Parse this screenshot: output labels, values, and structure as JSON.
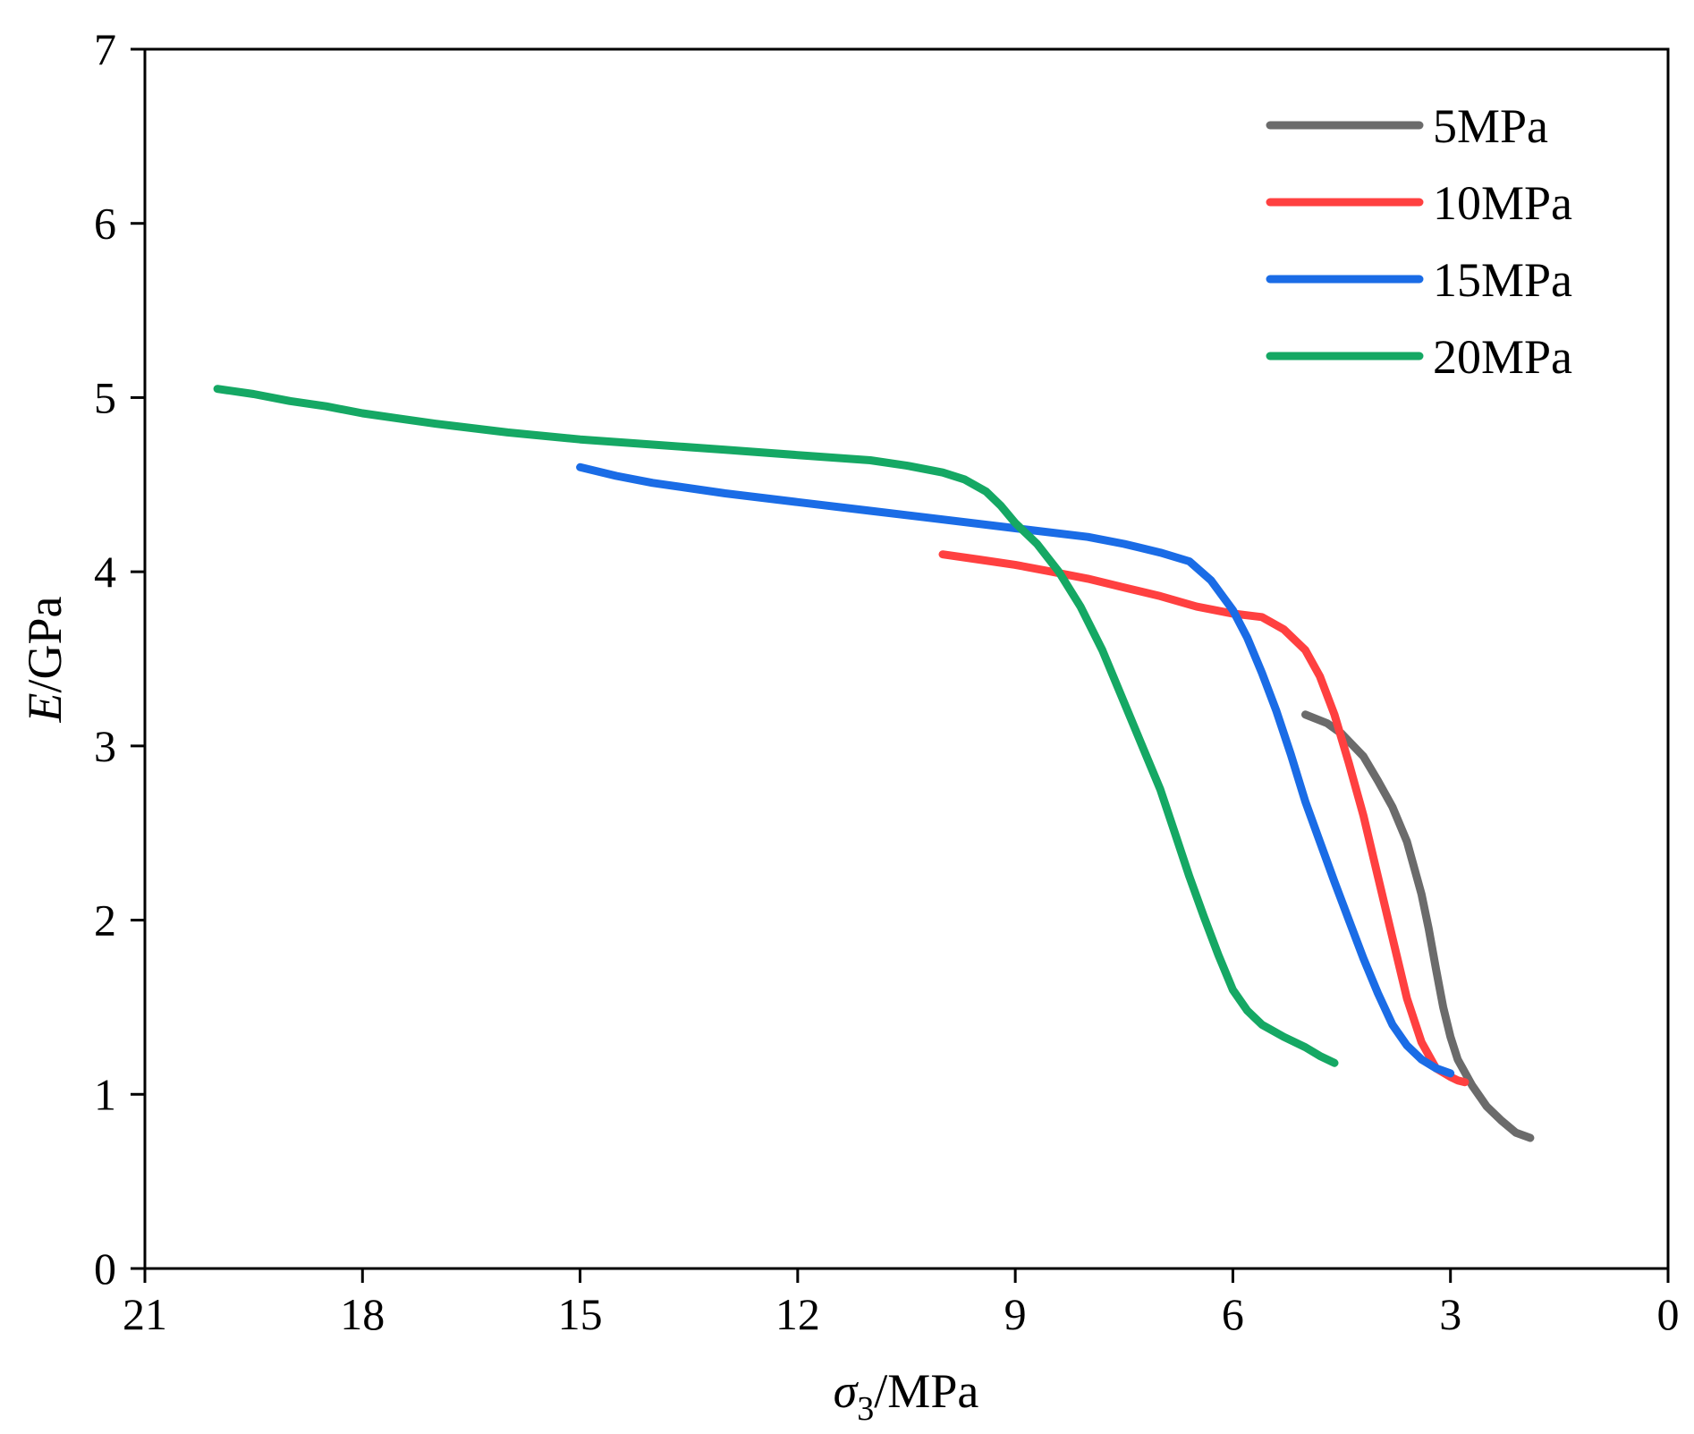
{
  "chart_data": {
    "type": "line",
    "title": "",
    "xlabel": {
      "symbol": "σ",
      "subscript": "3",
      "unit": "/MPa"
    },
    "ylabel": {
      "symbol": "E",
      "unit": "/GPa"
    },
    "xlim": [
      21,
      0
    ],
    "ylim": [
      0,
      7
    ],
    "xticks": [
      21,
      18,
      15,
      12,
      9,
      6,
      3,
      0
    ],
    "yticks": [
      0,
      1,
      2,
      3,
      4,
      5,
      6,
      7
    ],
    "xtick_labels": [
      "21",
      "18",
      "15",
      "12",
      "9",
      "6",
      "3",
      "0"
    ],
    "ytick_labels": [
      "0",
      "1",
      "2",
      "3",
      "4",
      "5",
      "6",
      "7"
    ],
    "grid": false,
    "legend_position": "top-right",
    "series": [
      {
        "name": "5MPa",
        "color": "#6b6b6b",
        "x": [
          5.0,
          4.7,
          4.5,
          4.2,
          4.0,
          3.8,
          3.6,
          3.4,
          3.3,
          3.2,
          3.1,
          3.0,
          2.9,
          2.7,
          2.5,
          2.3,
          2.1,
          1.9
        ],
        "y": [
          3.18,
          3.13,
          3.07,
          2.94,
          2.8,
          2.65,
          2.45,
          2.15,
          1.95,
          1.72,
          1.5,
          1.33,
          1.2,
          1.05,
          0.93,
          0.85,
          0.78,
          0.75
        ]
      },
      {
        "name": "10MPa",
        "color": "#ff4040",
        "x": [
          10.0,
          9.5,
          9.0,
          8.5,
          8.0,
          7.5,
          7.0,
          6.5,
          6.0,
          5.6,
          5.3,
          5.0,
          4.8,
          4.6,
          4.4,
          4.2,
          4.0,
          3.8,
          3.6,
          3.4,
          3.2,
          3.0,
          2.9,
          2.8
        ],
        "y": [
          4.1,
          4.07,
          4.04,
          4.0,
          3.96,
          3.91,
          3.86,
          3.8,
          3.76,
          3.74,
          3.67,
          3.55,
          3.4,
          3.18,
          2.9,
          2.6,
          2.25,
          1.9,
          1.55,
          1.3,
          1.15,
          1.1,
          1.08,
          1.07
        ]
      },
      {
        "name": "15MPa",
        "color": "#1a6ce6",
        "x": [
          15.0,
          14.5,
          14.0,
          13.0,
          12.0,
          11.0,
          10.0,
          9.0,
          8.0,
          7.5,
          7.0,
          6.6,
          6.3,
          6.0,
          5.8,
          5.6,
          5.4,
          5.2,
          5.0,
          4.8,
          4.6,
          4.4,
          4.2,
          4.0,
          3.8,
          3.6,
          3.4,
          3.2,
          3.0
        ],
        "y": [
          4.6,
          4.55,
          4.51,
          4.45,
          4.4,
          4.35,
          4.3,
          4.25,
          4.2,
          4.16,
          4.11,
          4.06,
          3.95,
          3.78,
          3.62,
          3.42,
          3.2,
          2.95,
          2.68,
          2.45,
          2.22,
          2.0,
          1.78,
          1.58,
          1.4,
          1.28,
          1.2,
          1.15,
          1.12
        ]
      },
      {
        "name": "20MPa",
        "color": "#15a864",
        "x": [
          20.0,
          19.5,
          19.0,
          18.5,
          18.0,
          17.5,
          17.0,
          16.0,
          15.0,
          14.0,
          13.0,
          12.0,
          11.0,
          10.5,
          10.0,
          9.7,
          9.4,
          9.2,
          9.0,
          8.7,
          8.4,
          8.1,
          7.8,
          7.5,
          7.2,
          7.0,
          6.8,
          6.6,
          6.4,
          6.2,
          6.0,
          5.8,
          5.6,
          5.3,
          5.0,
          4.8,
          4.6
        ],
        "y": [
          5.05,
          5.02,
          4.98,
          4.95,
          4.91,
          4.88,
          4.85,
          4.8,
          4.76,
          4.73,
          4.7,
          4.67,
          4.64,
          4.61,
          4.57,
          4.53,
          4.46,
          4.38,
          4.28,
          4.16,
          4.0,
          3.8,
          3.55,
          3.25,
          2.95,
          2.75,
          2.5,
          2.25,
          2.02,
          1.8,
          1.6,
          1.48,
          1.4,
          1.33,
          1.27,
          1.22,
          1.18
        ]
      }
    ]
  }
}
